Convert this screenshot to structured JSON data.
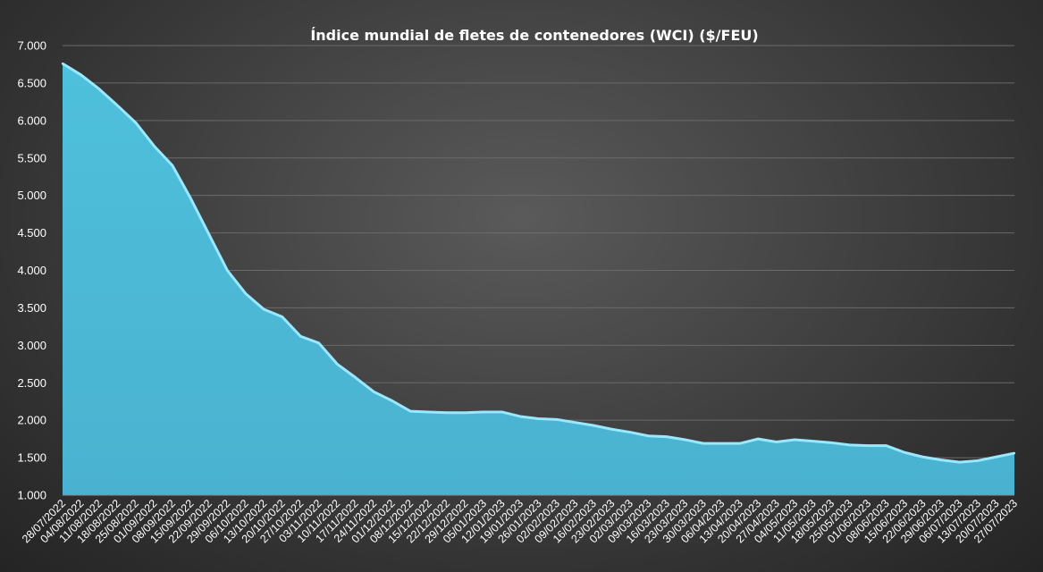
{
  "chart_data": {
    "type": "area",
    "title": "Índice mundial de fletes de contenedores (WCI) ($/FEU)",
    "xlabel": "",
    "ylabel": "",
    "ylim": [
      1000,
      7000
    ],
    "yticks": [
      1000,
      1500,
      2000,
      2500,
      3000,
      3500,
      4000,
      4500,
      5000,
      5500,
      6000,
      6500,
      7000
    ],
    "ytick_labels": [
      "1.000",
      "1.500",
      "2.000",
      "2.500",
      "3.000",
      "3.500",
      "4.000",
      "4.500",
      "5.000",
      "5.500",
      "6.000",
      "6.500",
      "7.000"
    ],
    "grid": true,
    "legend": "none",
    "colors": {
      "area": "#4eb8d6",
      "line": "#9ae8ff",
      "grid": "#6a6a6a",
      "text": "#ffffff"
    },
    "x": [
      "28/07/2022",
      "04/08/2022",
      "11/08/2022",
      "18/08/2022",
      "25/08/2022",
      "01/09/2022",
      "08/09/2022",
      "15/09/2022",
      "22/09/2022",
      "29/09/2022",
      "06/10/2022",
      "13/10/2022",
      "20/10/2022",
      "27/10/2022",
      "03/11/2022",
      "10/11/2022",
      "17/11/2022",
      "24/11/2022",
      "01/12/2022",
      "08/12/2022",
      "15/12/2022",
      "22/12/2022",
      "29/12/2022",
      "05/01/2023",
      "12/01/2023",
      "19/01/2023",
      "26/01/2023",
      "02/02/2023",
      "09/02/2023",
      "16/02/2023",
      "23/02/2023",
      "02/03/2023",
      "09/03/2023",
      "16/03/2023",
      "23/03/2023",
      "30/03/2023",
      "06/04/2023",
      "13/04/2023",
      "20/04/2023",
      "27/04/2023",
      "04/05/2023",
      "11/05/2023",
      "18/05/2023",
      "25/05/2023",
      "01/06/2023",
      "08/06/2023",
      "15/06/2023",
      "22/06/2023",
      "29/06/2023",
      "06/07/2023",
      "13/07/2023",
      "20/07/2023",
      "27/07/2023"
    ],
    "series": [
      {
        "values": [
          6760,
          6610,
          6420,
          6200,
          5970,
          5660,
          5400,
          4960,
          4480,
          4000,
          3690,
          3480,
          3380,
          3120,
          3030,
          2750,
          2570,
          2380,
          2260,
          2120,
          2110,
          2100,
          2100,
          2110,
          2110,
          2050,
          2020,
          2010,
          1970,
          1930,
          1880,
          1840,
          1790,
          1780,
          1740,
          1690,
          1690,
          1690,
          1750,
          1710,
          1740,
          1720,
          1700,
          1670,
          1660,
          1660,
          1570,
          1510,
          1470,
          1440,
          1460,
          1510,
          1560
        ]
      }
    ]
  }
}
